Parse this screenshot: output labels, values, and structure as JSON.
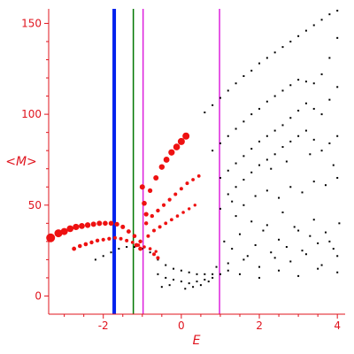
{
  "chart_data": {
    "type": "scatter",
    "title": "",
    "xlabel": "E",
    "ylabel": "<M>",
    "xlim": [
      -3.4,
      4.2
    ],
    "ylim": [
      -10,
      158
    ],
    "x_ticks": [
      -2,
      0,
      2,
      4
    ],
    "y_ticks": [
      0,
      50,
      100,
      150
    ],
    "grid": false,
    "legend": "none",
    "colors": {
      "axis": "#e0141e",
      "red_points": "#ee1111",
      "black_points": "#000000",
      "blue_line": "#0022ee",
      "green_line": "#007700",
      "magenta_line": "#dd22dd"
    },
    "vertical_lines": [
      {
        "x": -1.72,
        "color": "#0022ee",
        "width": 4
      },
      {
        "x": -1.23,
        "color": "#007700",
        "width": 1.5
      },
      {
        "x": -0.98,
        "color": "#dd22dd",
        "width": 1.5
      },
      {
        "x": 0.98,
        "color": "#dd22dd",
        "width": 1.5
      }
    ],
    "red_series": [
      {
        "x": [
          -3.35,
          -3.15,
          -3.0,
          -2.85,
          -2.7,
          -2.55,
          -2.4,
          -2.25,
          -2.1,
          -1.95,
          -1.8,
          -1.65,
          -1.5,
          -1.35,
          -1.2,
          -1.05
        ],
        "y": [
          32,
          34.5,
          35.5,
          37,
          38,
          38.5,
          39,
          39.5,
          40,
          40,
          40,
          39.5,
          38,
          35.5,
          33,
          30
        ],
        "size": [
          5,
          4.5,
          4,
          3.8,
          3.6,
          3.4,
          3.2,
          3,
          3,
          2.8,
          2.8,
          2.6,
          2.5,
          2.4,
          2.3,
          2.2
        ]
      },
      {
        "x": [
          -2.75,
          -2.6,
          -2.45,
          -2.3,
          -2.15,
          -2.0,
          -1.85,
          -1.7,
          -1.55,
          -1.4,
          -1.25,
          -1.1,
          -0.95,
          -0.8,
          -0.65
        ],
        "y": [
          26,
          27.5,
          28.5,
          29.5,
          30.5,
          31,
          31.5,
          32,
          31.5,
          30.5,
          29.5,
          28,
          27,
          26,
          24.5
        ],
        "size": [
          2.4,
          2.3,
          2.3,
          2.2,
          2.2,
          2.1,
          2.1,
          2,
          2,
          2,
          1.9,
          1.9,
          1.8,
          1.8,
          1.7
        ]
      },
      {
        "x": [
          -0.8,
          -0.65,
          -0.5,
          -0.38,
          -0.25,
          -0.12,
          0.0,
          0.12
        ],
        "y": [
          58,
          65,
          71,
          75,
          79,
          82,
          85,
          88
        ],
        "size": [
          2.6,
          3,
          3.2,
          3.4,
          3.6,
          3.8,
          4,
          4
        ]
      },
      {
        "x": [
          -0.9,
          -0.75,
          -0.6,
          -0.45,
          -0.3,
          -0.15,
          0.0,
          0.15,
          0.3,
          0.45
        ],
        "y": [
          40,
          44,
          47,
          50,
          53,
          56,
          59,
          62,
          64,
          66
        ],
        "size": [
          2.2,
          2.2,
          2.2,
          2.1,
          2.1,
          2,
          2,
          2,
          1.9,
          1.9
        ]
      },
      {
        "x": [
          -0.85,
          -0.7,
          -0.55,
          -0.4,
          -0.25,
          -0.1,
          0.05,
          0.2,
          0.35
        ],
        "y": [
          33,
          36,
          38,
          40,
          42,
          44,
          46,
          48,
          50
        ],
        "size": [
          2,
          2,
          2,
          1.9,
          1.9,
          1.8,
          1.8,
          1.7,
          1.7
        ]
      },
      {
        "x": [
          -1.0,
          -0.95,
          -0.9,
          -1.15,
          -1.05,
          -0.7,
          -0.6
        ],
        "y": [
          60,
          51,
          45,
          28,
          26,
          23,
          21
        ],
        "size": [
          3,
          2.8,
          2.6,
          2.4,
          2.4,
          2,
          2
        ]
      }
    ],
    "black_series": [
      {
        "x": [
          0.6,
          0.8,
          1.0,
          1.2,
          1.4,
          1.6,
          1.8,
          2.0,
          2.2,
          2.4,
          2.6,
          2.8,
          3.0,
          3.2,
          3.4,
          3.6,
          3.8,
          4.0
        ],
        "y": [
          101,
          105,
          109,
          113,
          117,
          121,
          124,
          128,
          131,
          134,
          137,
          140,
          143,
          146,
          149,
          152,
          155,
          157
        ]
      },
      {
        "x": [
          0.8,
          1.0,
          1.2,
          1.4,
          1.6,
          1.8,
          2.0,
          2.2,
          2.4,
          2.6,
          2.8,
          3.0,
          3.2,
          3.4,
          3.6,
          3.8,
          4.0
        ],
        "y": [
          80,
          84,
          88,
          92,
          96,
          100,
          103,
          107,
          110,
          113,
          116,
          119,
          118,
          117,
          122,
          131,
          142
        ]
      },
      {
        "x": [
          1.0,
          1.2,
          1.4,
          1.6,
          1.8,
          2.0,
          2.2,
          2.4,
          2.6,
          2.8,
          3.0,
          3.2,
          3.4,
          3.6,
          3.8,
          4.0
        ],
        "y": [
          65,
          69,
          73,
          77,
          81,
          85,
          88,
          91,
          94,
          98,
          102,
          106,
          103,
          100,
          108,
          115
        ]
      },
      {
        "x": [
          1.2,
          1.4,
          1.6,
          1.8,
          2.0,
          2.2,
          2.4,
          2.6,
          2.8,
          3.0,
          3.2,
          3.4,
          3.6,
          3.8,
          4.0
        ],
        "y": [
          56,
          60,
          64,
          68,
          72,
          75,
          78,
          82,
          85,
          88,
          91,
          86,
          80,
          84,
          88
        ]
      },
      {
        "x": [
          -2.2,
          -2.0,
          -1.8,
          -1.6,
          -1.4,
          -1.2,
          -1.0,
          -0.8,
          -0.6,
          -0.4,
          -0.2,
          0.0,
          0.2,
          0.4,
          0.6,
          0.8
        ],
        "y": [
          20,
          22,
          24,
          26,
          27,
          27,
          26,
          24,
          20,
          17,
          15,
          14,
          13,
          12,
          12,
          12
        ]
      },
      {
        "x": [
          -0.6,
          -0.4,
          -0.2,
          0.0,
          0.2,
          0.4,
          0.6,
          0.8,
          1.0,
          1.2,
          -0.5,
          -0.3,
          0.1,
          0.3,
          0.5,
          0.7,
          0.9
        ],
        "y": [
          12,
          10,
          9,
          8,
          7,
          8,
          9,
          10,
          12,
          14,
          5,
          6,
          4,
          5,
          6,
          8,
          16
        ]
      },
      {
        "x": [
          1.1,
          1.3,
          1.5,
          1.7,
          1.9,
          2.1,
          2.3,
          2.5,
          2.7,
          2.9,
          3.1,
          3.3,
          3.5,
          3.7,
          3.9,
          4.05,
          1.2,
          1.6,
          2.0,
          2.4,
          2.8,
          3.2,
          3.6,
          4.0,
          1.4,
          1.8,
          2.2,
          2.6,
          3.0,
          3.4,
          3.8
        ],
        "y": [
          30,
          26,
          34,
          22,
          28,
          36,
          24,
          31,
          27,
          38,
          25,
          33,
          29,
          35,
          26,
          40,
          18,
          20,
          16,
          21,
          19,
          23,
          17,
          22,
          44,
          41,
          39,
          46,
          36,
          42,
          30
        ]
      },
      {
        "x": [
          1.0,
          1.3,
          1.6,
          1.9,
          2.2,
          2.5,
          2.8,
          3.1,
          3.4,
          3.7,
          4.0,
          1.5,
          2.0,
          2.5,
          3.0,
          3.5,
          4.0,
          2.3,
          2.7,
          3.3,
          3.9
        ],
        "y": [
          48,
          52,
          50,
          55,
          58,
          54,
          60,
          57,
          63,
          61,
          65,
          12,
          10,
          14,
          11,
          15,
          13,
          70,
          74,
          78,
          72
        ]
      }
    ]
  }
}
